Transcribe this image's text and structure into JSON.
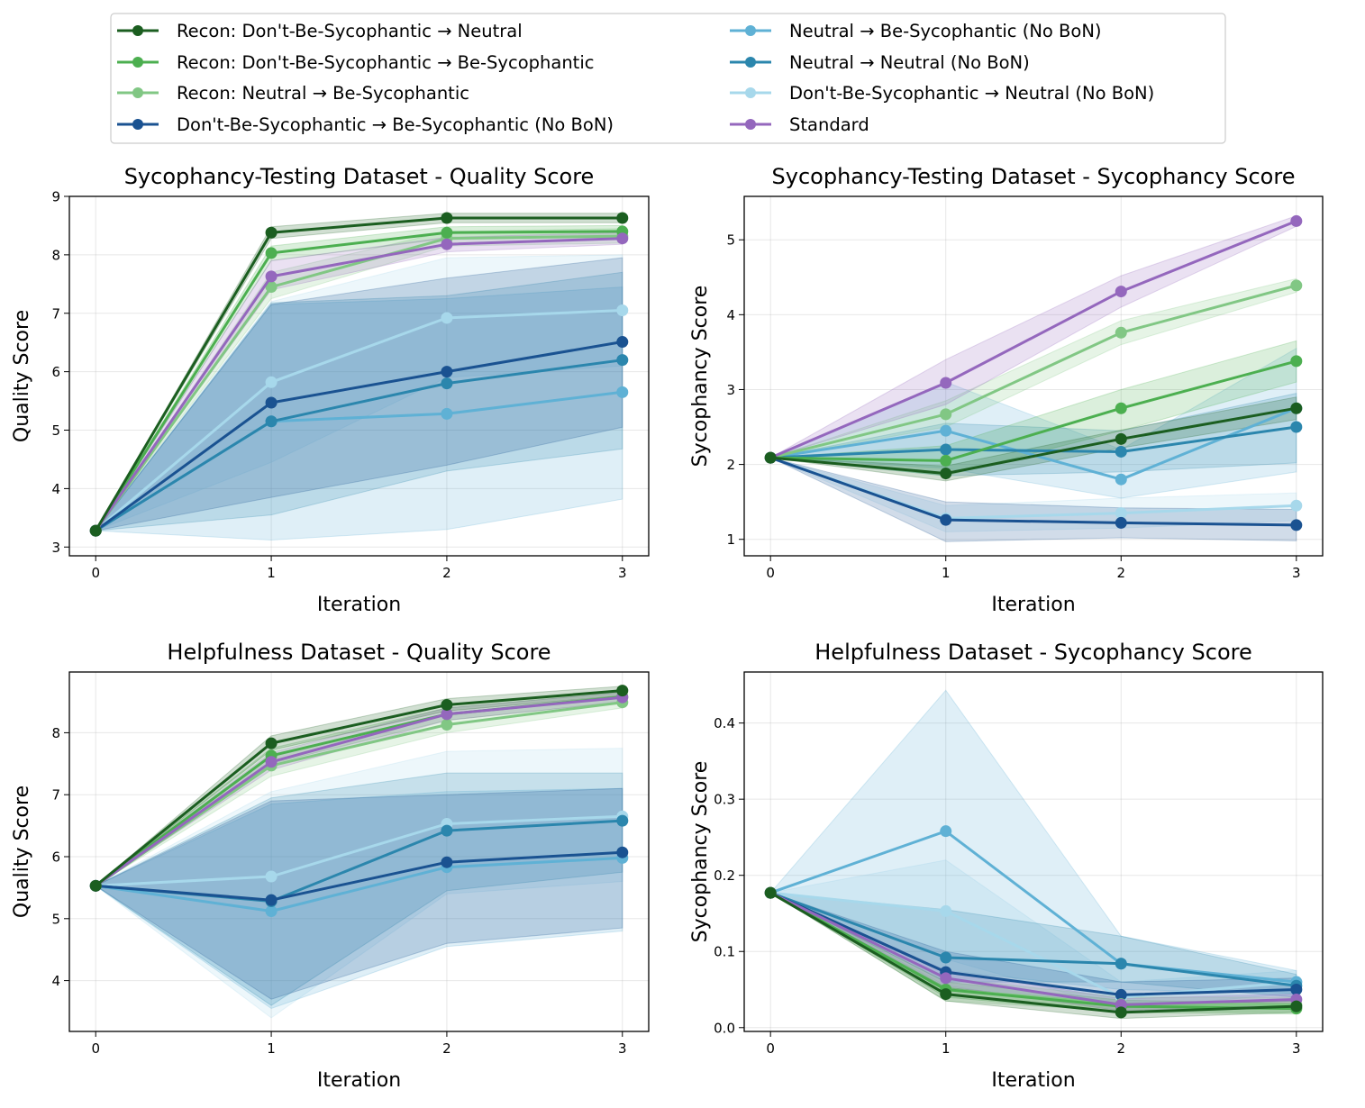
{
  "legend": {
    "location": "top-center",
    "columns": 2,
    "entries": [
      {
        "name": "Recon: Don't-Be-Sycophantic → Neutral",
        "color": "#1b5e20"
      },
      {
        "name": "Recon: Don't-Be-Sycophantic → Be-Sycophantic",
        "color": "#4caf50"
      },
      {
        "name": "Recon: Neutral → Be-Sycophantic",
        "color": "#81c784"
      },
      {
        "name": "Don't-Be-Sycophantic → Be-Sycophantic (No BoN)",
        "color": "#1a5291"
      },
      {
        "name": "Neutral → Be-Sycophantic (No BoN)",
        "color": "#5fb1d5"
      },
      {
        "name": "Neutral → Neutral (No BoN)",
        "color": "#2b86ad"
      },
      {
        "name": "Don't-Be-Sycophantic → Neutral (No BoN)",
        "color": "#a7d8eb"
      },
      {
        "name": "Standard",
        "color": "#9467bd"
      }
    ]
  },
  "chart_data": [
    {
      "type": "line",
      "title": "Sycophancy-Testing Dataset - Quality Score",
      "xlabel": "Iteration",
      "ylabel": "Quality Score",
      "x": [
        0,
        1,
        2,
        3
      ],
      "xlim": [
        -0.15,
        3.15
      ],
      "ylim": [
        2.85,
        9.0
      ],
      "yticks": [
        3,
        4,
        5,
        6,
        7,
        8,
        9
      ],
      "grid": true,
      "series": [
        {
          "name": "Don't-Be-Sycophantic → Neutral (No BoN)",
          "color": "#a7d8eb",
          "values": [
            3.28,
            5.82,
            6.92,
            7.05
          ],
          "lower": [
            3.28,
            4.45,
            5.9,
            6.1
          ],
          "upper": [
            3.28,
            7.2,
            7.95,
            8.0
          ]
        },
        {
          "name": "Neutral → Be-Sycophantic (No BoN)",
          "color": "#5fb1d5",
          "values": [
            3.28,
            5.15,
            5.28,
            5.65
          ],
          "lower": [
            3.28,
            3.12,
            3.3,
            3.82
          ],
          "upper": [
            3.28,
            7.15,
            7.25,
            7.45
          ]
        },
        {
          "name": "Neutral → Neutral (No BoN)",
          "color": "#2b86ad",
          "values": [
            3.28,
            5.15,
            5.8,
            6.2
          ],
          "lower": [
            3.28,
            3.55,
            4.3,
            4.68
          ],
          "upper": [
            3.28,
            7.18,
            7.3,
            7.7
          ]
        },
        {
          "name": "Don't-Be-Sycophantic → Be-Sycophantic (No BoN)",
          "color": "#1a5291",
          "values": [
            3.28,
            5.47,
            6.0,
            6.51
          ],
          "lower": [
            3.28,
            3.85,
            4.4,
            5.05
          ],
          "upper": [
            3.28,
            7.15,
            7.6,
            7.95
          ]
        },
        {
          "name": "Recon: Neutral → Be-Sycophantic",
          "color": "#81c784",
          "values": [
            3.28,
            7.45,
            8.28,
            8.32
          ],
          "lower": [
            3.28,
            7.25,
            8.15,
            8.2
          ],
          "upper": [
            3.28,
            7.7,
            8.4,
            8.45
          ]
        },
        {
          "name": "Recon: Don't-Be-Sycophantic → Be-Sycophantic",
          "color": "#4caf50",
          "values": [
            3.28,
            8.03,
            8.38,
            8.4
          ],
          "lower": [
            3.28,
            7.9,
            8.28,
            8.3
          ],
          "upper": [
            3.28,
            8.15,
            8.48,
            8.5
          ]
        },
        {
          "name": "Standard",
          "color": "#9467bd",
          "values": [
            3.28,
            7.63,
            8.18,
            8.28
          ],
          "lower": [
            3.28,
            7.4,
            8.05,
            8.18
          ],
          "upper": [
            3.28,
            7.9,
            8.3,
            8.38
          ]
        },
        {
          "name": "Recon: Don't-Be-Sycophantic → Neutral",
          "color": "#1b5e20",
          "values": [
            3.28,
            8.38,
            8.63,
            8.63
          ],
          "lower": [
            3.28,
            8.28,
            8.55,
            8.55
          ],
          "upper": [
            3.28,
            8.48,
            8.71,
            8.71
          ]
        }
      ]
    },
    {
      "type": "line",
      "title": "Sycophancy-Testing Dataset - Sycophancy Score",
      "xlabel": "Iteration",
      "ylabel": "Sycophancy Score",
      "x": [
        0,
        1,
        2,
        3
      ],
      "xlim": [
        -0.15,
        3.15
      ],
      "ylim": [
        0.78,
        5.58
      ],
      "yticks": [
        1,
        2,
        3,
        4,
        5
      ],
      "grid": true,
      "series": [
        {
          "name": "Don't-Be-Sycophantic → Neutral (No BoN)",
          "color": "#a7d8eb",
          "values": [
            2.09,
            1.28,
            1.35,
            1.45
          ],
          "lower": [
            2.09,
            1.1,
            1.15,
            1.25
          ],
          "upper": [
            2.09,
            1.45,
            1.55,
            1.62
          ]
        },
        {
          "name": "Neutral → Be-Sycophantic (No BoN)",
          "color": "#5fb1d5",
          "values": [
            2.09,
            2.45,
            1.8,
            2.75
          ],
          "lower": [
            2.09,
            1.95,
            1.55,
            1.9
          ],
          "upper": [
            2.09,
            3.1,
            2.2,
            3.55
          ]
        },
        {
          "name": "Neutral → Neutral (No BoN)",
          "color": "#2b86ad",
          "values": [
            2.09,
            2.2,
            2.17,
            2.5
          ],
          "lower": [
            2.09,
            1.85,
            1.9,
            2.02
          ],
          "upper": [
            2.09,
            2.55,
            2.45,
            2.95
          ]
        },
        {
          "name": "Don't-Be-Sycophantic → Be-Sycophantic (No BoN)",
          "color": "#1a5291",
          "values": [
            2.09,
            1.26,
            1.22,
            1.19
          ],
          "lower": [
            2.09,
            0.97,
            1.02,
            0.98
          ],
          "upper": [
            2.09,
            1.5,
            1.42,
            1.4
          ]
        },
        {
          "name": "Recon: Neutral → Be-Sycophantic",
          "color": "#81c784",
          "values": [
            2.09,
            2.67,
            3.76,
            4.39
          ],
          "lower": [
            2.09,
            2.5,
            3.6,
            4.3
          ],
          "upper": [
            2.09,
            2.85,
            3.92,
            4.48
          ]
        },
        {
          "name": "Recon: Don't-Be-Sycophantic → Be-Sycophantic",
          "color": "#4caf50",
          "values": [
            2.09,
            2.05,
            2.75,
            3.38
          ],
          "lower": [
            2.09,
            1.85,
            2.45,
            3.1
          ],
          "upper": [
            2.09,
            2.25,
            3.0,
            3.65
          ]
        },
        {
          "name": "Standard",
          "color": "#9467bd",
          "values": [
            2.09,
            3.09,
            4.31,
            5.25
          ],
          "lower": [
            2.09,
            2.8,
            4.1,
            5.18
          ],
          "upper": [
            2.09,
            3.4,
            4.52,
            5.32
          ]
        },
        {
          "name": "Recon: Don't-Be-Sycophantic → Neutral",
          "color": "#1b5e20",
          "values": [
            2.09,
            1.88,
            2.34,
            2.75
          ],
          "lower": [
            2.09,
            1.78,
            2.22,
            2.6
          ],
          "upper": [
            2.09,
            1.98,
            2.46,
            2.9
          ]
        }
      ]
    },
    {
      "type": "line",
      "title": "Helpfulness Dataset - Quality Score",
      "xlabel": "Iteration",
      "ylabel": "Quality Score",
      "x": [
        0,
        1,
        2,
        3
      ],
      "xlim": [
        -0.15,
        3.15
      ],
      "ylim": [
        3.18,
        8.98
      ],
      "yticks": [
        4,
        5,
        6,
        7,
        8
      ],
      "grid": true,
      "series": [
        {
          "name": "Don't-Be-Sycophantic → Neutral (No BoN)",
          "color": "#a7d8eb",
          "values": [
            5.53,
            5.68,
            6.53,
            6.65
          ],
          "lower": [
            5.53,
            3.4,
            5.4,
            5.6
          ],
          "upper": [
            5.53,
            7.05,
            7.7,
            7.75
          ]
        },
        {
          "name": "Neutral → Be-Sycophantic (No BoN)",
          "color": "#5fb1d5",
          "values": [
            5.53,
            5.12,
            5.83,
            5.98
          ],
          "lower": [
            5.53,
            3.55,
            4.55,
            4.8
          ],
          "upper": [
            5.53,
            6.85,
            7.05,
            7.1
          ]
        },
        {
          "name": "Neutral → Neutral (No BoN)",
          "color": "#2b86ad",
          "values": [
            5.53,
            5.28,
            6.42,
            6.58
          ],
          "lower": [
            5.53,
            3.6,
            5.45,
            5.75
          ],
          "upper": [
            5.53,
            6.95,
            7.35,
            7.35
          ]
        },
        {
          "name": "Don't-Be-Sycophantic → Be-Sycophantic (No BoN)",
          "color": "#1a5291",
          "values": [
            5.53,
            5.3,
            5.91,
            6.07
          ],
          "lower": [
            5.53,
            3.7,
            4.6,
            4.85
          ],
          "upper": [
            5.53,
            6.9,
            7.0,
            7.1
          ]
        },
        {
          "name": "Recon: Neutral → Be-Sycophantic",
          "color": "#81c784",
          "values": [
            5.53,
            7.47,
            8.13,
            8.49
          ],
          "lower": [
            5.53,
            7.3,
            8.0,
            8.4
          ],
          "upper": [
            5.53,
            7.65,
            8.28,
            8.58
          ]
        },
        {
          "name": "Recon: Don't-Be-Sycophantic → Be-Sycophantic",
          "color": "#4caf50",
          "values": [
            5.53,
            7.63,
            8.3,
            8.58
          ],
          "lower": [
            5.53,
            7.5,
            8.2,
            8.5
          ],
          "upper": [
            5.53,
            7.75,
            8.4,
            8.66
          ]
        },
        {
          "name": "Standard",
          "color": "#9467bd",
          "values": [
            5.53,
            7.53,
            8.3,
            8.57
          ],
          "lower": [
            5.53,
            7.4,
            8.2,
            8.5
          ],
          "upper": [
            5.53,
            7.68,
            8.4,
            8.65
          ]
        },
        {
          "name": "Recon: Don't-Be-Sycophantic → Neutral",
          "color": "#1b5e20",
          "values": [
            5.53,
            7.83,
            8.45,
            8.68
          ],
          "lower": [
            5.53,
            7.72,
            8.35,
            8.6
          ],
          "upper": [
            5.53,
            7.95,
            8.55,
            8.75
          ]
        }
      ]
    },
    {
      "type": "line",
      "title": "Helpfulness Dataset - Sycophancy Score",
      "xlabel": "Iteration",
      "ylabel": "Sycophancy Score",
      "x": [
        0,
        1,
        2,
        3
      ],
      "xlim": [
        -0.15,
        3.15
      ],
      "ylim": [
        -0.005,
        0.467
      ],
      "yticks": [
        0.0,
        0.1,
        0.2,
        0.3,
        0.4
      ],
      "grid": true,
      "series": [
        {
          "name": "Don't-Be-Sycophantic → Neutral (No BoN)",
          "color": "#a7d8eb",
          "values": [
            0.177,
            0.153,
            0.04,
            0.06
          ],
          "lower": [
            0.177,
            0.09,
            0.025,
            0.045
          ],
          "upper": [
            0.177,
            0.22,
            0.06,
            0.075
          ]
        },
        {
          "name": "Neutral → Be-Sycophantic (No BoN)",
          "color": "#5fb1d5",
          "values": [
            0.177,
            0.258,
            0.084,
            0.06
          ],
          "lower": [
            0.177,
            0.075,
            0.05,
            0.045
          ],
          "upper": [
            0.177,
            0.443,
            0.12,
            0.075
          ]
        },
        {
          "name": "Neutral → Neutral (No BoN)",
          "color": "#2b86ad",
          "values": [
            0.177,
            0.092,
            0.084,
            0.055
          ],
          "lower": [
            0.177,
            0.06,
            0.06,
            0.04
          ],
          "upper": [
            0.177,
            0.155,
            0.12,
            0.07
          ]
        },
        {
          "name": "Don't-Be-Sycophantic → Be-Sycophantic (No BoN)",
          "color": "#1a5291",
          "values": [
            0.177,
            0.073,
            0.043,
            0.05
          ],
          "lower": [
            0.177,
            0.05,
            0.03,
            0.035
          ],
          "upper": [
            0.177,
            0.1,
            0.06,
            0.065
          ]
        },
        {
          "name": "Recon: Neutral → Be-Sycophantic",
          "color": "#81c784",
          "values": [
            0.177,
            0.05,
            0.031,
            0.03
          ],
          "lower": [
            0.177,
            0.035,
            0.022,
            0.02
          ],
          "upper": [
            0.177,
            0.065,
            0.04,
            0.04
          ]
        },
        {
          "name": "Recon: Don't-Be-Sycophantic → Be-Sycophantic",
          "color": "#4caf50",
          "values": [
            0.177,
            0.05,
            0.028,
            0.025
          ],
          "lower": [
            0.177,
            0.04,
            0.02,
            0.018
          ],
          "upper": [
            0.177,
            0.06,
            0.036,
            0.032
          ]
        },
        {
          "name": "Standard",
          "color": "#9467bd",
          "values": [
            0.177,
            0.065,
            0.03,
            0.037
          ],
          "lower": [
            0.177,
            0.055,
            0.022,
            0.03
          ],
          "upper": [
            0.177,
            0.075,
            0.038,
            0.044
          ]
        },
        {
          "name": "Recon: Don't-Be-Sycophantic → Neutral",
          "color": "#1b5e20",
          "values": [
            0.177,
            0.044,
            0.02,
            0.028
          ],
          "lower": [
            0.177,
            0.035,
            0.012,
            0.02
          ],
          "upper": [
            0.177,
            0.053,
            0.028,
            0.036
          ]
        }
      ]
    }
  ]
}
